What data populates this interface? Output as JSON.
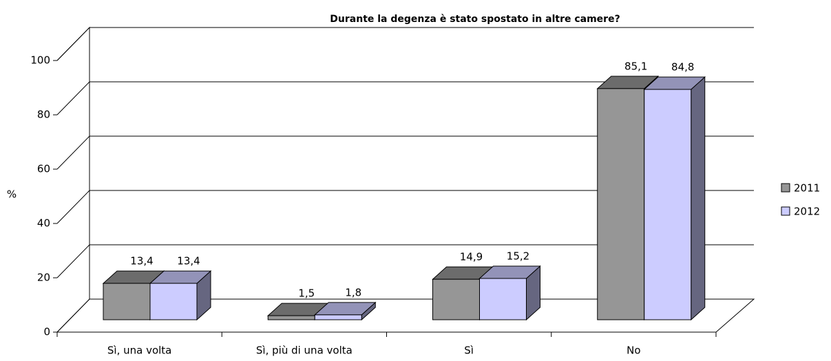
{
  "chart_data": {
    "type": "bar3d",
    "title": "Durante la degenza è stato spostato in altre camere?",
    "ylabel": "%",
    "categories": [
      "Sì, una volta",
      "Sì, più di una volta",
      "Sì",
      "No"
    ],
    "series": [
      {
        "name": "2011",
        "color": "#969696",
        "values": [
          13.4,
          1.5,
          14.9,
          85.1
        ],
        "value_labels": [
          "13,4",
          "1,5",
          "14,9",
          "85,1"
        ]
      },
      {
        "name": "2012",
        "color": "#ccccff",
        "values": [
          13.4,
          1.8,
          15.2,
          84.8
        ],
        "value_labels": [
          "13,4",
          "1,8",
          "15,2",
          "84,8"
        ]
      }
    ],
    "ylim": [
      0,
      100
    ],
    "yticks": [
      0,
      20,
      40,
      60,
      80,
      100
    ],
    "grid": true,
    "legend": "right"
  }
}
